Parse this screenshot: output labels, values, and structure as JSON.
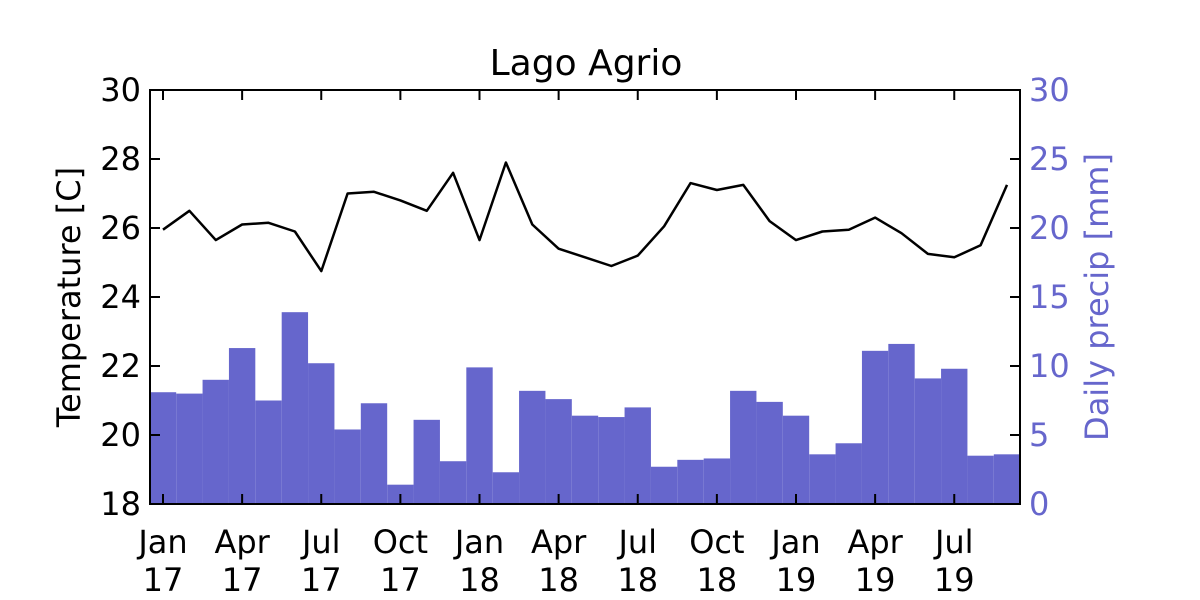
{
  "chart_data": {
    "type": "bar+line",
    "title": "Lago Agrio",
    "x_ticks": [
      "Jan\n17",
      "Apr\n17",
      "Jul\n17",
      "Oct\n17",
      "Jan\n18",
      "Apr\n18",
      "Jul\n18",
      "Oct\n18",
      "Jan\n19",
      "Apr\n19",
      "Jul\n19"
    ],
    "x_months": [
      "Jan 17",
      "Feb 17",
      "Mar 17",
      "Apr 17",
      "May 17",
      "Jun 17",
      "Jul 17",
      "Aug 17",
      "Sep 17",
      "Oct 17",
      "Nov 17",
      "Dec 17",
      "Jan 18",
      "Feb 18",
      "Mar 18",
      "Apr 18",
      "May 18",
      "Jun 18",
      "Jul 18",
      "Aug 18",
      "Sep 18",
      "Oct 18",
      "Nov 18",
      "Dec 18",
      "Jan 19",
      "Feb 19",
      "Mar 19",
      "Apr 19",
      "May 19",
      "Jun 19",
      "Jul 19",
      "Aug 19",
      "Sep 19"
    ],
    "left_axis": {
      "label": "Temperature [C]",
      "ylim": [
        18,
        30
      ],
      "ticks": [
        18,
        20,
        22,
        24,
        26,
        28,
        30
      ]
    },
    "right_axis": {
      "label": "Daily precip [mm]",
      "ylim": [
        0,
        30
      ],
      "ticks": [
        0,
        5,
        10,
        15,
        20,
        25,
        30
      ],
      "color": "#6666cc"
    },
    "series": [
      {
        "type": "line",
        "axis": "left",
        "color": "#000000",
        "values": [
          25.95,
          26.5,
          25.65,
          26.1,
          26.15,
          25.9,
          24.75,
          27.0,
          27.05,
          26.8,
          26.5,
          27.6,
          25.65,
          27.9,
          26.1,
          25.4,
          25.15,
          24.9,
          25.2,
          26.05,
          27.3,
          27.1,
          27.25,
          26.2,
          25.65,
          25.9,
          25.95,
          26.3,
          25.85,
          25.25,
          25.15,
          25.5,
          27.25
        ]
      },
      {
        "type": "bar",
        "axis": "right",
        "color": "#6666cc",
        "values": [
          8.1,
          8.0,
          9.0,
          11.3,
          7.5,
          13.9,
          10.2,
          5.4,
          7.3,
          1.4,
          6.1,
          3.1,
          9.9,
          2.3,
          8.2,
          7.6,
          6.4,
          6.3,
          7.0,
          2.7,
          3.2,
          3.3,
          8.2,
          7.4,
          6.4,
          3.6,
          4.4,
          11.1,
          11.6,
          9.1,
          9.8,
          3.5,
          3.6
        ]
      }
    ]
  }
}
